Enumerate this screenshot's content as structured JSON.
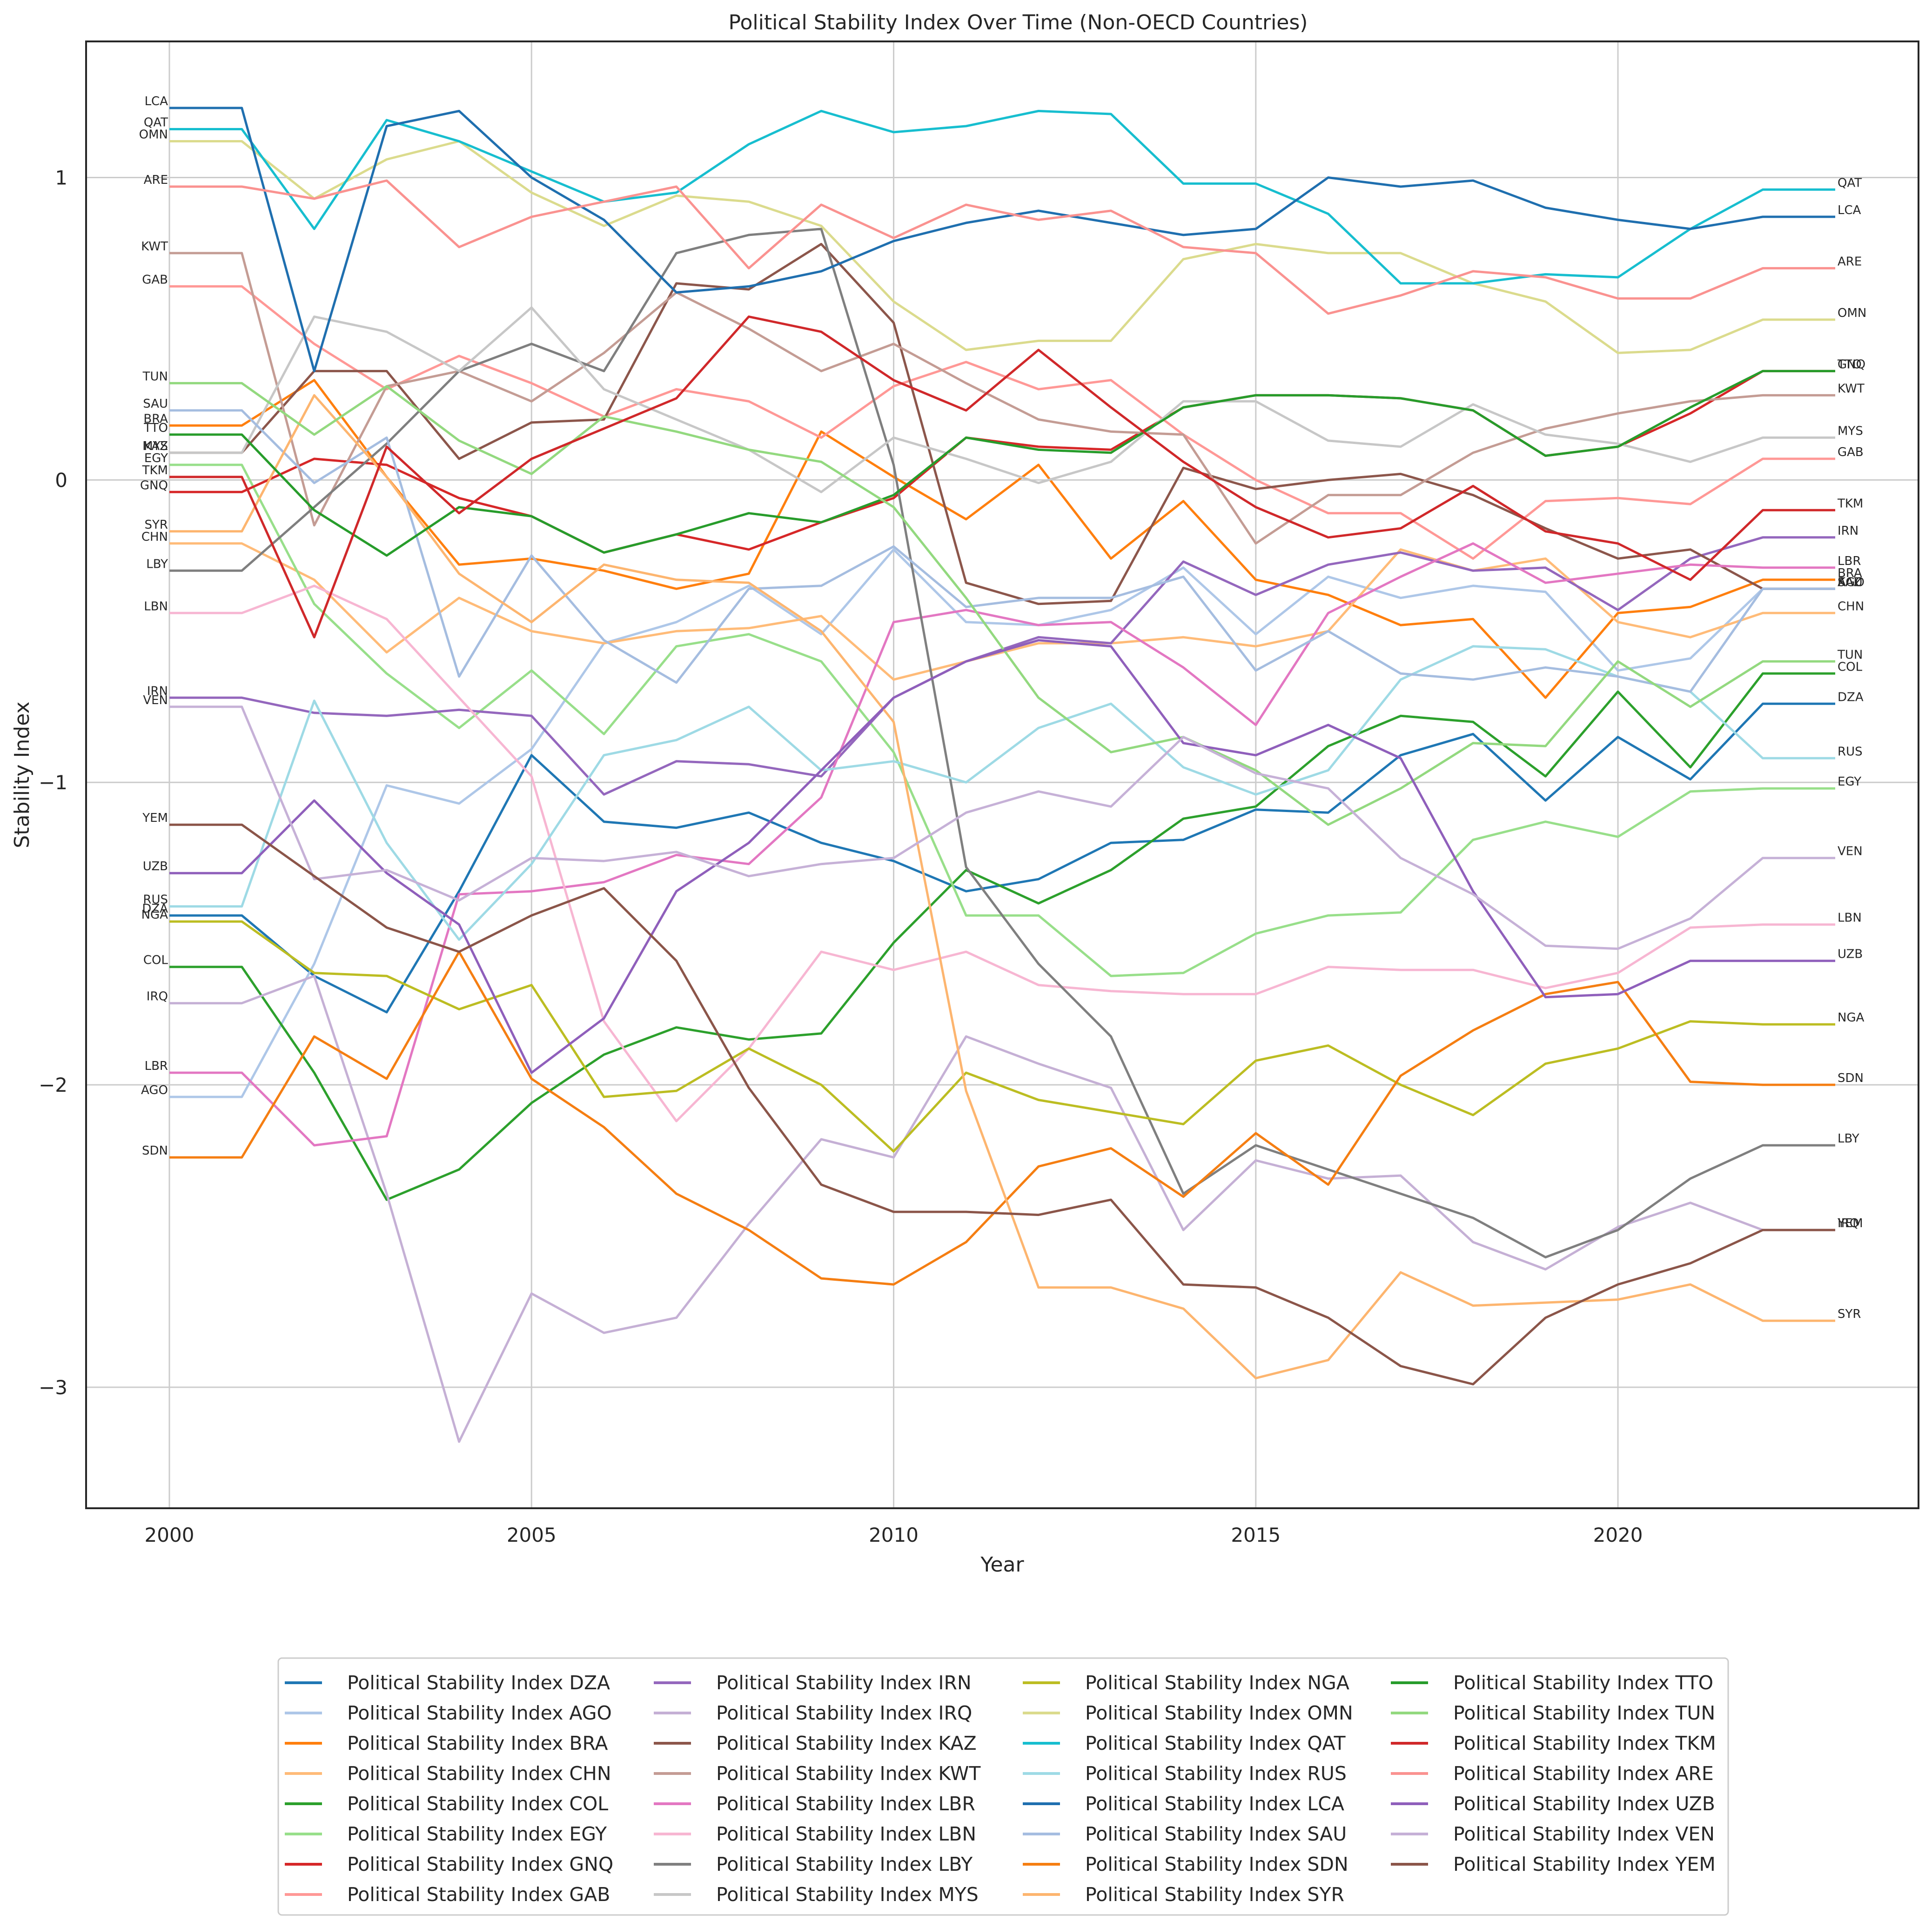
{
  "chart_data": {
    "type": "line",
    "title": "Political Stability Index Over Time (Non-OECD Countries)",
    "xlabel": "Year",
    "ylabel": "Stability Index",
    "xlim": [
      1998.85,
      2024.15
    ],
    "ylim": [
      -3.4,
      1.45
    ],
    "xticks": [
      2000,
      2005,
      2010,
      2015,
      2020
    ],
    "yticks": [
      -3,
      -2,
      -1,
      0,
      1
    ],
    "ytick_labels": [
      "−3",
      "−2",
      "−1",
      "0",
      "1"
    ],
    "grid": true,
    "legend": {
      "placement": "bottom-center, below plot",
      "columns": 4
    },
    "series_label_prefix": "Political Stability Index",
    "x": [
      2000,
      2001,
      2002,
      2003,
      2004,
      2005,
      2006,
      2007,
      2008,
      2009,
      2010,
      2011,
      2012,
      2013,
      2014,
      2015,
      2016,
      2017,
      2018,
      2019,
      2020,
      2021,
      2022,
      2023
    ],
    "series": [
      {
        "name": "Political Stability Index DZA",
        "code": "DZA",
        "color": "#1f77b4",
        "values": [
          -1.44,
          -1.44,
          -1.64,
          -1.76,
          -1.36,
          -0.91,
          -1.13,
          -1.15,
          -1.1,
          -1.2,
          -1.26,
          -1.36,
          -1.32,
          -1.2,
          -1.19,
          -1.09,
          -1.1,
          -0.91,
          -0.84,
          -1.06,
          -0.85,
          -0.99,
          -0.74,
          -0.74
        ]
      },
      {
        "name": "Political Stability Index AGO",
        "code": "AGO",
        "color": "#aec7e8",
        "values": [
          -2.04,
          -2.04,
          -1.6,
          -1.01,
          -1.07,
          -0.89,
          -0.54,
          -0.47,
          -0.35,
          -0.51,
          -0.23,
          -0.47,
          -0.48,
          -0.43,
          -0.29,
          -0.51,
          -0.32,
          -0.39,
          -0.35,
          -0.37,
          -0.63,
          -0.59,
          -0.36,
          -0.36
        ]
      },
      {
        "name": "Political Stability Index BRA",
        "code": "BRA",
        "color": "#ff7f0e",
        "values": [
          0.18,
          0.18,
          0.33,
          0.01,
          -0.28,
          -0.26,
          -0.3,
          -0.36,
          -0.31,
          0.16,
          0.01,
          -0.13,
          0.05,
          -0.26,
          -0.07,
          -0.33,
          -0.38,
          -0.48,
          -0.46,
          -0.72,
          -0.44,
          -0.42,
          -0.33,
          -0.33
        ]
      },
      {
        "name": "Political Stability Index CHN",
        "code": "CHN",
        "color": "#ffbb78",
        "values": [
          -0.21,
          -0.21,
          -0.33,
          -0.57,
          -0.39,
          -0.5,
          -0.54,
          -0.5,
          -0.49,
          -0.45,
          -0.66,
          -0.6,
          -0.54,
          -0.54,
          -0.52,
          -0.55,
          -0.5,
          -0.23,
          -0.3,
          -0.26,
          -0.47,
          -0.52,
          -0.44,
          -0.44
        ]
      },
      {
        "name": "Political Stability Index COL",
        "code": "COL",
        "color": "#2ca02c",
        "values": [
          -1.61,
          -1.61,
          -1.96,
          -2.38,
          -2.28,
          -2.06,
          -1.9,
          -1.81,
          -1.85,
          -1.83,
          -1.53,
          -1.29,
          -1.4,
          -1.29,
          -1.12,
          -1.08,
          -0.88,
          -0.78,
          -0.8,
          -0.98,
          -0.7,
          -0.95,
          -0.64,
          -0.64
        ]
      },
      {
        "name": "Political Stability Index EGY",
        "code": "EGY",
        "color": "#98df8a",
        "values": [
          0.05,
          0.05,
          -0.41,
          -0.64,
          -0.82,
          -0.63,
          -0.84,
          -0.55,
          -0.51,
          -0.6,
          -0.9,
          -1.44,
          -1.44,
          -1.64,
          -1.63,
          -1.5,
          -1.44,
          -1.43,
          -1.19,
          -1.13,
          -1.18,
          -1.03,
          -1.02,
          -1.02
        ]
      },
      {
        "name": "Political Stability Index GNQ",
        "code": "GNQ",
        "color": "#d62728",
        "values": [
          -0.04,
          -0.04,
          0.07,
          0.05,
          -0.06,
          -0.12,
          -0.24,
          -0.18,
          -0.23,
          -0.14,
          -0.06,
          0.14,
          0.11,
          0.1,
          0.24,
          0.28,
          0.28,
          0.27,
          0.23,
          0.08,
          0.11,
          0.22,
          0.36,
          0.36
        ]
      },
      {
        "name": "Political Stability Index GAB",
        "code": "GAB",
        "color": "#ff9896",
        "values": [
          0.64,
          0.64,
          0.45,
          0.3,
          0.41,
          0.32,
          0.21,
          0.3,
          0.26,
          0.14,
          0.31,
          0.39,
          0.3,
          0.33,
          0.15,
          0.0,
          -0.11,
          -0.11,
          -0.26,
          -0.07,
          -0.06,
          -0.08,
          0.07,
          0.07
        ]
      },
      {
        "name": "Political Stability Index IRN",
        "code": "IRN",
        "color": "#9467bd",
        "values": [
          -0.72,
          -0.72,
          -0.77,
          -0.78,
          -0.76,
          -0.78,
          -1.04,
          -0.93,
          -0.94,
          -0.98,
          -0.72,
          -0.6,
          -0.52,
          -0.54,
          -0.27,
          -0.38,
          -0.28,
          -0.24,
          -0.3,
          -0.29,
          -0.43,
          -0.26,
          -0.19,
          -0.19
        ]
      },
      {
        "name": "Political Stability Index IRQ",
        "code": "IRQ",
        "color": "#c5b0d5",
        "values": [
          -1.73,
          -1.73,
          -1.64,
          -2.36,
          -3.18,
          -2.69,
          -2.82,
          -2.77,
          -2.46,
          -2.18,
          -2.24,
          -1.84,
          -1.93,
          -2.01,
          -2.48,
          -2.25,
          -2.31,
          -2.3,
          -2.52,
          -2.61,
          -2.47,
          -2.39,
          -2.48,
          -2.48
        ]
      },
      {
        "name": "Political Stability Index KAZ",
        "code": "KAZ",
        "color": "#8c564b",
        "values": [
          0.09,
          0.09,
          0.36,
          0.36,
          0.07,
          0.19,
          0.2,
          0.65,
          0.63,
          0.78,
          0.52,
          -0.34,
          -0.41,
          -0.4,
          0.04,
          -0.03,
          0.0,
          0.02,
          -0.05,
          -0.16,
          -0.26,
          -0.23,
          -0.36,
          -0.36
        ]
      },
      {
        "name": "Political Stability Index KWT",
        "code": "KWT",
        "color": "#c49c94",
        "values": [
          0.75,
          0.75,
          -0.15,
          0.31,
          0.36,
          0.26,
          0.42,
          0.62,
          0.5,
          0.36,
          0.45,
          0.32,
          0.2,
          0.16,
          0.15,
          -0.21,
          -0.05,
          -0.05,
          0.09,
          0.17,
          0.22,
          0.26,
          0.28,
          0.28
        ]
      },
      {
        "name": "Political Stability Index LBR",
        "code": "LBR",
        "color": "#e377c2",
        "values": [
          -1.96,
          -1.96,
          -2.2,
          -2.17,
          -1.37,
          -1.36,
          -1.33,
          -1.24,
          -1.27,
          -1.05,
          -0.47,
          -0.43,
          -0.48,
          -0.47,
          -0.62,
          -0.81,
          -0.44,
          -0.32,
          -0.21,
          -0.34,
          -0.31,
          -0.28,
          -0.29,
          -0.29
        ]
      },
      {
        "name": "Political Stability Index LBN",
        "code": "LBN",
        "color": "#f7b6d2",
        "values": [
          -0.44,
          -0.44,
          -0.35,
          -0.46,
          -0.72,
          -0.98,
          -1.79,
          -2.12,
          -1.88,
          -1.56,
          -1.62,
          -1.56,
          -1.67,
          -1.69,
          -1.7,
          -1.7,
          -1.61,
          -1.62,
          -1.62,
          -1.68,
          -1.63,
          -1.48,
          -1.47,
          -1.47
        ]
      },
      {
        "name": "Political Stability Index LBY",
        "code": "LBY",
        "color": "#7f7f7f",
        "values": [
          -0.3,
          -0.3,
          -0.09,
          0.12,
          0.36,
          0.45,
          0.36,
          0.75,
          0.81,
          0.83,
          0.05,
          -1.28,
          -1.6,
          -1.84,
          -2.36,
          -2.2,
          -2.28,
          -2.36,
          -2.44,
          -2.57,
          -2.48,
          -2.31,
          -2.2,
          -2.2
        ]
      },
      {
        "name": "Political Stability Index MYS",
        "code": "MYS",
        "color": "#c7c7c7",
        "values": [
          0.09,
          0.09,
          0.54,
          0.49,
          0.36,
          0.57,
          0.3,
          0.2,
          0.1,
          -0.04,
          0.14,
          0.07,
          -0.01,
          0.06,
          0.26,
          0.26,
          0.13,
          0.11,
          0.25,
          0.15,
          0.12,
          0.06,
          0.14,
          0.14
        ]
      },
      {
        "name": "Political Stability Index NGA",
        "code": "NGA",
        "color": "#bcbd22",
        "values": [
          -1.46,
          -1.46,
          -1.63,
          -1.64,
          -1.75,
          -1.67,
          -2.04,
          -2.02,
          -1.88,
          -2.0,
          -2.22,
          -1.96,
          -2.05,
          -2.09,
          -2.13,
          -1.92,
          -1.87,
          -2.0,
          -2.1,
          -1.93,
          -1.88,
          -1.79,
          -1.8,
          -1.8
        ]
      },
      {
        "name": "Political Stability Index OMN",
        "code": "OMN",
        "color": "#dbdb8d",
        "values": [
          1.12,
          1.12,
          0.93,
          1.06,
          1.12,
          0.95,
          0.84,
          0.94,
          0.92,
          0.84,
          0.59,
          0.43,
          0.46,
          0.46,
          0.73,
          0.78,
          0.75,
          0.75,
          0.65,
          0.59,
          0.42,
          0.43,
          0.53,
          0.53
        ]
      },
      {
        "name": "Political Stability Index QAT",
        "code": "QAT",
        "color": "#17becf",
        "values": [
          1.16,
          1.16,
          0.83,
          1.19,
          1.12,
          1.02,
          0.92,
          0.95,
          1.11,
          1.22,
          1.15,
          1.17,
          1.22,
          1.21,
          0.98,
          0.98,
          0.88,
          0.65,
          0.65,
          0.68,
          0.67,
          0.83,
          0.96,
          0.96
        ]
      },
      {
        "name": "Political Stability Index RUS",
        "code": "RUS",
        "color": "#9edae5",
        "values": [
          -1.41,
          -1.41,
          -0.73,
          -1.2,
          -1.52,
          -1.27,
          -0.91,
          -0.86,
          -0.75,
          -0.96,
          -0.93,
          -1.0,
          -0.82,
          -0.74,
          -0.95,
          -1.04,
          -0.96,
          -0.66,
          -0.55,
          -0.56,
          -0.65,
          -0.7,
          -0.92,
          -0.92
        ]
      },
      {
        "name": "Political Stability Index LCA",
        "code": "LCA",
        "color": "#1f6faf",
        "values": [
          1.23,
          1.23,
          0.36,
          1.17,
          1.22,
          1.0,
          0.86,
          0.62,
          0.64,
          0.69,
          0.79,
          0.85,
          0.89,
          0.85,
          0.81,
          0.83,
          1.0,
          0.97,
          0.99,
          0.9,
          0.86,
          0.83,
          0.87,
          0.87
        ]
      },
      {
        "name": "Political Stability Index SAU",
        "code": "SAU",
        "color": "#a5bde0",
        "values": [
          0.23,
          0.23,
          -0.01,
          0.14,
          -0.65,
          -0.25,
          -0.53,
          -0.67,
          -0.36,
          -0.35,
          -0.22,
          -0.42,
          -0.39,
          -0.39,
          -0.32,
          -0.63,
          -0.5,
          -0.64,
          -0.66,
          -0.62,
          -0.65,
          -0.7,
          -0.36,
          -0.36
        ]
      },
      {
        "name": "Political Stability Index SDN",
        "code": "SDN",
        "color": "#f57e12",
        "values": [
          -2.24,
          -2.24,
          -1.84,
          -1.98,
          -1.56,
          -1.98,
          -2.14,
          -2.36,
          -2.48,
          -2.64,
          -2.66,
          -2.52,
          -2.27,
          -2.21,
          -2.37,
          -2.16,
          -2.33,
          -1.97,
          -1.82,
          -1.7,
          -1.66,
          -1.99,
          -2.0,
          -2.0
        ]
      },
      {
        "name": "Political Stability Index SYR",
        "code": "SYR",
        "color": "#fdb56f",
        "values": [
          -0.17,
          -0.17,
          0.28,
          0.01,
          -0.31,
          -0.47,
          -0.28,
          -0.33,
          -0.34,
          -0.5,
          -0.8,
          -2.02,
          -2.67,
          -2.67,
          -2.74,
          -2.97,
          -2.91,
          -2.62,
          -2.73,
          -2.72,
          -2.71,
          -2.66,
          -2.78,
          -2.78
        ]
      },
      {
        "name": "Political Stability Index TTO",
        "code": "TTO",
        "color": "#279c2b",
        "values": [
          0.15,
          0.15,
          -0.1,
          -0.25,
          -0.09,
          -0.12,
          -0.24,
          -0.18,
          -0.11,
          -0.14,
          -0.05,
          0.14,
          0.1,
          0.09,
          0.24,
          0.28,
          0.28,
          0.27,
          0.23,
          0.08,
          0.11,
          0.24,
          0.36,
          0.36
        ]
      },
      {
        "name": "Political Stability Index TUN",
        "code": "TUN",
        "color": "#93d97f",
        "values": [
          0.32,
          0.32,
          0.15,
          0.31,
          0.13,
          0.02,
          0.21,
          0.16,
          0.1,
          0.06,
          -0.09,
          -0.39,
          -0.72,
          -0.9,
          -0.85,
          -0.96,
          -1.14,
          -1.02,
          -0.87,
          -0.88,
          -0.6,
          -0.75,
          -0.6,
          -0.6
        ]
      },
      {
        "name": "Political Stability Index TKM",
        "code": "TKM",
        "color": "#d0282a",
        "values": [
          0.01,
          0.01,
          -0.52,
          0.11,
          -0.11,
          0.07,
          0.17,
          0.27,
          0.54,
          0.49,
          0.33,
          0.23,
          0.43,
          0.24,
          0.06,
          -0.09,
          -0.19,
          -0.16,
          -0.02,
          -0.17,
          -0.21,
          -0.33,
          -0.1,
          -0.1
        ]
      },
      {
        "name": "Political Stability Index ARE",
        "code": "ARE",
        "color": "#fa9290",
        "values": [
          0.97,
          0.97,
          0.93,
          0.99,
          0.77,
          0.87,
          0.92,
          0.97,
          0.7,
          0.91,
          0.8,
          0.91,
          0.86,
          0.89,
          0.77,
          0.75,
          0.55,
          0.61,
          0.69,
          0.67,
          0.6,
          0.6,
          0.7,
          0.7
        ]
      },
      {
        "name": "Political Stability Index UZB",
        "code": "UZB",
        "color": "#8f5fbb",
        "values": [
          -1.3,
          -1.3,
          -1.06,
          -1.3,
          -1.47,
          -1.96,
          -1.78,
          -1.36,
          -1.2,
          -0.96,
          -0.72,
          -0.6,
          -0.53,
          -0.55,
          -0.87,
          -0.91,
          -0.81,
          -0.92,
          -1.36,
          -1.71,
          -1.7,
          -1.59,
          -1.59,
          -1.59
        ]
      },
      {
        "name": "Political Stability Index VEN",
        "code": "VEN",
        "color": "#c6b1d7",
        "values": [
          -0.75,
          -0.75,
          -1.32,
          -1.29,
          -1.39,
          -1.25,
          -1.26,
          -1.23,
          -1.31,
          -1.27,
          -1.25,
          -1.1,
          -1.03,
          -1.08,
          -0.85,
          -0.97,
          -1.02,
          -1.25,
          -1.37,
          -1.54,
          -1.55,
          -1.45,
          -1.25,
          -1.25
        ]
      },
      {
        "name": "Political Stability Index YEM",
        "code": "YEM",
        "color": "#8b5549",
        "values": [
          -1.14,
          -1.14,
          -1.31,
          -1.48,
          -1.56,
          -1.44,
          -1.35,
          -1.59,
          -2.01,
          -2.33,
          -2.42,
          -2.42,
          -2.43,
          -2.38,
          -2.66,
          -2.67,
          -2.77,
          -2.93,
          -2.99,
          -2.77,
          -2.66,
          -2.59,
          -2.48,
          -2.48
        ]
      }
    ]
  }
}
